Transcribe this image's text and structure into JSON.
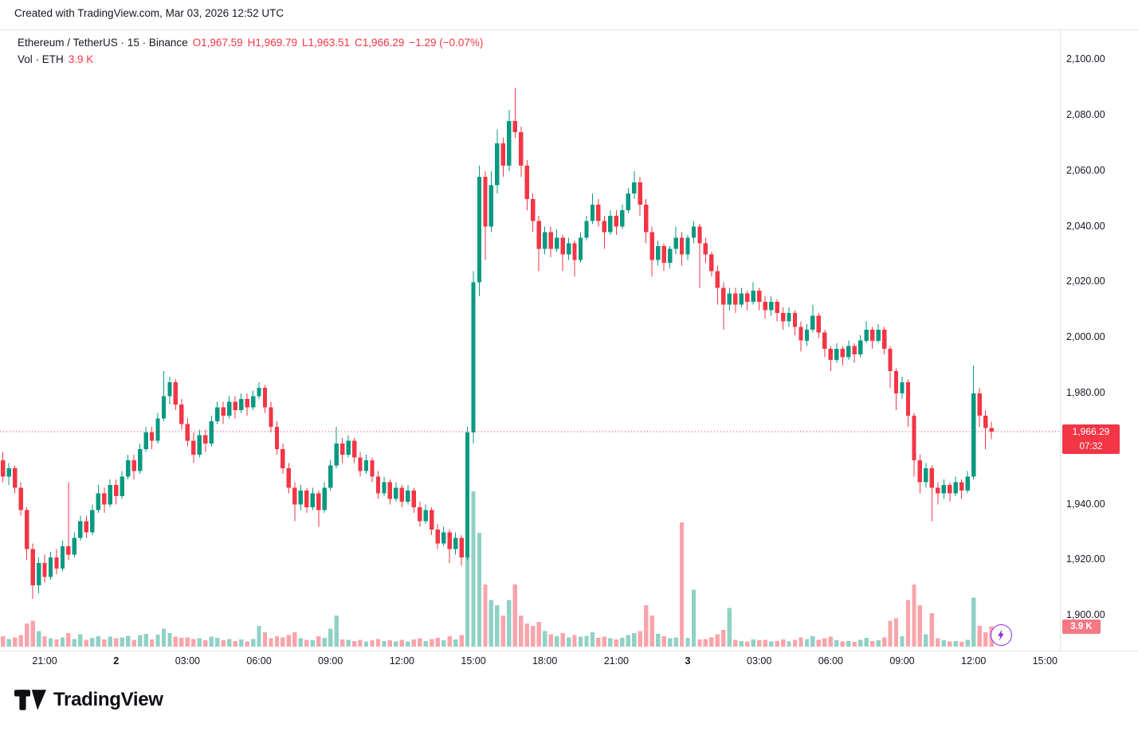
{
  "attribution": "Created with TradingView.com, Mar 03, 2026 12:52 UTC",
  "legend": {
    "title": "Ethereum / TetherUS · 15 · Binance",
    "open": "O1,967.59",
    "high": "H1,969.79",
    "low": "L1,963.51",
    "close": "C1,966.29",
    "change": "−1.29 (−0.07%)",
    "volume_label": "Vol · ETH",
    "volume_value": "3.9 K"
  },
  "badges": {
    "last_price": "1,966.29",
    "countdown": "07:32",
    "volume": "3.9 K"
  },
  "footer": {
    "brand": "TradingView"
  },
  "colors": {
    "up": "#089981",
    "down": "#F23645",
    "up_vol": "rgba(8,153,129,0.45)",
    "down_vol": "rgba(242,54,69,0.45)",
    "axis_text": "#131722",
    "last_price_badge_bg": "#F23645",
    "volume_badge_bg": "#f57883",
    "flash_purple": "#8a2be2"
  },
  "chart_data": {
    "type": "candlestick",
    "symbol": "Ethereum / TetherUS",
    "exchange": "Binance",
    "interval_minutes": 15,
    "start_time": "2026-03-01 19:15 UTC",
    "last_price": 1966.29,
    "last_volume_k": 3.9,
    "price_range": [
      1888,
      2111
    ],
    "total_slots": 178,
    "grid": "off",
    "legend_position": "top-left",
    "price_ticks": [
      {
        "label": "2,100.00",
        "value": 2100
      },
      {
        "label": "2,080.00",
        "value": 2080
      },
      {
        "label": "2,060.00",
        "value": 2060
      },
      {
        "label": "2,040.00",
        "value": 2040
      },
      {
        "label": "2,020.00",
        "value": 2020
      },
      {
        "label": "2,000.00",
        "value": 2000
      },
      {
        "label": "1,980.00",
        "value": 1980
      },
      {
        "label": "1,960.00",
        "value": 1960
      },
      {
        "label": "1,940.00",
        "value": 1940
      },
      {
        "label": "1,920.00",
        "value": 1920
      },
      {
        "label": "1,900.00",
        "value": 1900
      }
    ],
    "time_ticks": [
      {
        "label": "21:00",
        "slot": 7,
        "bold": false
      },
      {
        "label": "2",
        "slot": 19,
        "bold": true
      },
      {
        "label": "03:00",
        "slot": 31,
        "bold": false
      },
      {
        "label": "06:00",
        "slot": 43,
        "bold": false
      },
      {
        "label": "09:00",
        "slot": 55,
        "bold": false
      },
      {
        "label": "12:00",
        "slot": 67,
        "bold": false
      },
      {
        "label": "15:00",
        "slot": 79,
        "bold": false
      },
      {
        "label": "18:00",
        "slot": 91,
        "bold": false
      },
      {
        "label": "21:00",
        "slot": 103,
        "bold": false
      },
      {
        "label": "3",
        "slot": 115,
        "bold": true
      },
      {
        "label": "03:00",
        "slot": 127,
        "bold": false
      },
      {
        "label": "06:00",
        "slot": 139,
        "bold": false
      },
      {
        "label": "09:00",
        "slot": 151,
        "bold": false
      },
      {
        "label": "12:00",
        "slot": 163,
        "bold": false
      },
      {
        "label": "15:00",
        "slot": 175,
        "bold": false
      }
    ],
    "candles_ohlcv": [
      [
        1956,
        1959,
        1948,
        1950,
        2.0
      ],
      [
        1950,
        1955,
        1947,
        1953,
        1.5
      ],
      [
        1953,
        1954,
        1944,
        1946,
        1.8
      ],
      [
        1946,
        1948,
        1936,
        1938,
        2.2
      ],
      [
        1938,
        1939,
        1920,
        1924,
        4.5
      ],
      [
        1924,
        1926,
        1906,
        1911,
        5.0
      ],
      [
        1911,
        1921,
        1908,
        1919,
        3.0
      ],
      [
        1919,
        1922,
        1912,
        1914,
        2.0
      ],
      [
        1914,
        1923,
        1913,
        1921,
        1.6
      ],
      [
        1921,
        1924,
        1915,
        1917,
        1.4
      ],
      [
        1917,
        1927,
        1916,
        1925,
        1.8
      ],
      [
        1925,
        1948,
        1920,
        1922,
        2.6
      ],
      [
        1922,
        1930,
        1921,
        1928,
        1.5
      ],
      [
        1928,
        1936,
        1927,
        1934,
        2.4
      ],
      [
        1934,
        1936,
        1928,
        1930,
        1.3
      ],
      [
        1930,
        1940,
        1929,
        1938,
        1.7
      ],
      [
        1938,
        1947,
        1937,
        1944,
        2.0
      ],
      [
        1944,
        1946,
        1937,
        1940,
        1.4
      ],
      [
        1940,
        1949,
        1939,
        1947,
        1.9
      ],
      [
        1947,
        1949,
        1940,
        1943,
        1.6
      ],
      [
        1943,
        1952,
        1942,
        1950,
        1.8
      ],
      [
        1950,
        1958,
        1949,
        1956,
        2.1
      ],
      [
        1956,
        1958,
        1949,
        1952,
        1.3
      ],
      [
        1952,
        1962,
        1951,
        1960,
        2.2
      ],
      [
        1960,
        1968,
        1959,
        1966,
        2.5
      ],
      [
        1966,
        1968,
        1960,
        1963,
        1.4
      ],
      [
        1963,
        1973,
        1962,
        1971,
        2.3
      ],
      [
        1971,
        1988,
        1970,
        1979,
        3.5
      ],
      [
        1979,
        1986,
        1976,
        1984,
        2.6
      ],
      [
        1984,
        1985,
        1974,
        1976,
        1.9
      ],
      [
        1976,
        1978,
        1967,
        1969,
        1.7
      ],
      [
        1969,
        1971,
        1961,
        1963,
        1.8
      ],
      [
        1963,
        1966,
        1955,
        1958,
        1.5
      ],
      [
        1958,
        1967,
        1957,
        1965,
        1.6
      ],
      [
        1965,
        1967,
        1959,
        1962,
        1.2
      ],
      [
        1962,
        1972,
        1961,
        1970,
        1.9
      ],
      [
        1970,
        1977,
        1969,
        1975,
        1.7
      ],
      [
        1975,
        1977,
        1969,
        1972,
        1.2
      ],
      [
        1972,
        1979,
        1971,
        1977,
        1.5
      ],
      [
        1977,
        1979,
        1971,
        1974,
        1.1
      ],
      [
        1974,
        1980,
        1973,
        1978,
        1.4
      ],
      [
        1978,
        1980,
        1972,
        1975,
        1.0
      ],
      [
        1975,
        1981,
        1974,
        1979,
        1.5
      ],
      [
        1979,
        1984,
        1978,
        1982,
        4.0
      ],
      [
        1982,
        1983,
        1973,
        1975,
        2.8
      ],
      [
        1975,
        1977,
        1966,
        1968,
        1.6
      ],
      [
        1968,
        1970,
        1958,
        1960,
        2.0
      ],
      [
        1960,
        1962,
        1951,
        1953,
        1.8
      ],
      [
        1953,
        1955,
        1944,
        1946,
        2.2
      ],
      [
        1946,
        1948,
        1934,
        1940,
        2.8
      ],
      [
        1940,
        1947,
        1938,
        1945,
        1.6
      ],
      [
        1945,
        1946,
        1937,
        1939,
        1.3
      ],
      [
        1939,
        1946,
        1938,
        1944,
        1.2
      ],
      [
        1944,
        1945,
        1932,
        1938,
        2.0
      ],
      [
        1938,
        1948,
        1937,
        1946,
        1.7
      ],
      [
        1946,
        1956,
        1945,
        1954,
        3.5
      ],
      [
        1954,
        1968,
        1953,
        1962,
        6.0
      ],
      [
        1962,
        1964,
        1955,
        1958,
        1.4
      ],
      [
        1958,
        1965,
        1957,
        1963,
        1.3
      ],
      [
        1963,
        1964,
        1955,
        1957,
        1.1
      ],
      [
        1957,
        1959,
        1950,
        1952,
        1.3
      ],
      [
        1952,
        1958,
        1951,
        1956,
        1.0
      ],
      [
        1956,
        1957,
        1948,
        1950,
        1.2
      ],
      [
        1950,
        1952,
        1942,
        1944,
        1.5
      ],
      [
        1944,
        1950,
        1943,
        1948,
        1.1
      ],
      [
        1948,
        1949,
        1940,
        1942,
        1.2
      ],
      [
        1942,
        1948,
        1941,
        1946,
        1.0
      ],
      [
        1946,
        1947,
        1939,
        1941,
        1.3
      ],
      [
        1941,
        1947,
        1940,
        1945,
        1.0
      ],
      [
        1945,
        1946,
        1937,
        1939,
        1.4
      ],
      [
        1939,
        1941,
        1932,
        1934,
        1.6
      ],
      [
        1934,
        1940,
        1933,
        1938,
        1.1
      ],
      [
        1938,
        1939,
        1929,
        1931,
        1.5
      ],
      [
        1931,
        1933,
        1924,
        1926,
        1.7
      ],
      [
        1926,
        1932,
        1925,
        1930,
        1.2
      ],
      [
        1930,
        1931,
        1919,
        1924,
        2.0
      ],
      [
        1924,
        1930,
        1922,
        1928,
        1.4
      ],
      [
        1928,
        1929,
        1918,
        1921,
        2.2
      ],
      [
        1921,
        1968,
        1920,
        1966,
        18.0
      ],
      [
        1966,
        2024,
        1962,
        2020,
        30.0
      ],
      [
        2020,
        2062,
        2015,
        2058,
        22.0
      ],
      [
        2058,
        2060,
        2028,
        2040,
        12.0
      ],
      [
        2040,
        2060,
        2038,
        2055,
        9.0
      ],
      [
        2055,
        2075,
        2052,
        2070,
        8.0
      ],
      [
        2070,
        2072,
        2058,
        2062,
        6.0
      ],
      [
        2062,
        2082,
        2060,
        2078,
        9.0
      ],
      [
        2078,
        2090,
        2072,
        2074,
        12.0
      ],
      [
        2074,
        2076,
        2058,
        2062,
        6.0
      ],
      [
        2062,
        2064,
        2046,
        2050,
        4.5
      ],
      [
        2050,
        2052,
        2038,
        2042,
        4.0
      ],
      [
        2042,
        2044,
        2024,
        2032,
        4.8
      ],
      [
        2032,
        2040,
        2030,
        2038,
        3.0
      ],
      [
        2038,
        2040,
        2029,
        2032,
        2.4
      ],
      [
        2032,
        2039,
        2031,
        2036,
        2.0
      ],
      [
        2036,
        2037,
        2024,
        2030,
        2.6
      ],
      [
        2030,
        2036,
        2028,
        2034,
        1.8
      ],
      [
        2034,
        2035,
        2022,
        2028,
        2.2
      ],
      [
        2028,
        2038,
        2027,
        2036,
        1.9
      ],
      [
        2036,
        2044,
        2035,
        2042,
        2.1
      ],
      [
        2042,
        2052,
        2041,
        2048,
        2.8
      ],
      [
        2048,
        2050,
        2040,
        2042,
        1.7
      ],
      [
        2042,
        2044,
        2032,
        2038,
        1.9
      ],
      [
        2038,
        2046,
        2037,
        2044,
        1.6
      ],
      [
        2044,
        2046,
        2037,
        2040,
        1.4
      ],
      [
        2040,
        2048,
        2039,
        2046,
        1.7
      ],
      [
        2046,
        2054,
        2045,
        2052,
        2.2
      ],
      [
        2052,
        2060,
        2050,
        2056,
        2.6
      ],
      [
        2056,
        2058,
        2044,
        2048,
        3.0
      ],
      [
        2048,
        2050,
        2034,
        2038,
        8.0
      ],
      [
        2038,
        2040,
        2022,
        2028,
        6.0
      ],
      [
        2028,
        2035,
        2026,
        2033,
        2.5
      ],
      [
        2033,
        2034,
        2024,
        2027,
        2.0
      ],
      [
        2027,
        2033,
        2025,
        2032,
        1.6
      ],
      [
        2032,
        2040,
        2030,
        2036,
        1.8
      ],
      [
        2036,
        2038,
        2026,
        2030,
        24.0
      ],
      [
        2030,
        2037,
        2028,
        2036,
        1.7
      ],
      [
        2036,
        2042,
        2034,
        2040,
        11.0
      ],
      [
        2040,
        2041,
        2018,
        2034,
        1.4
      ],
      [
        2034,
        2036,
        2027,
        2030,
        1.5
      ],
      [
        2030,
        2031,
        2022,
        2024,
        1.8
      ],
      [
        2024,
        2026,
        2012,
        2018,
        2.4
      ],
      [
        2018,
        2020,
        2003,
        2012,
        3.2
      ],
      [
        2012,
        2018,
        2010,
        2016,
        7.5
      ],
      [
        2016,
        2018,
        2009,
        2012,
        1.3
      ],
      [
        2012,
        2018,
        2011,
        2016,
        1.1
      ],
      [
        2016,
        2017,
        2010,
        2013,
        1.0
      ],
      [
        2013,
        2020,
        2012,
        2017,
        1.4
      ],
      [
        2017,
        2018,
        2010,
        2013,
        1.2
      ],
      [
        2013,
        2015,
        2007,
        2010,
        1.3
      ],
      [
        2010,
        2015,
        2008,
        2013,
        1.0
      ],
      [
        2013,
        2014,
        2006,
        2009,
        1.1
      ],
      [
        2009,
        2011,
        2003,
        2006,
        1.4
      ],
      [
        2006,
        2011,
        2004,
        2009,
        1.0
      ],
      [
        2009,
        2010,
        2001,
        2004,
        1.3
      ],
      [
        2004,
        2006,
        1995,
        1999,
        1.8
      ],
      [
        1999,
        2005,
        1997,
        2003,
        1.5
      ],
      [
        2003,
        2012,
        2002,
        2008,
        2.0
      ],
      [
        2008,
        2009,
        2000,
        2002,
        1.3
      ],
      [
        2002,
        2003,
        1993,
        1996,
        1.6
      ],
      [
        1996,
        1997,
        1988,
        1992,
        1.9
      ],
      [
        1992,
        1998,
        1991,
        1996,
        1.2
      ],
      [
        1996,
        1997,
        1990,
        1993,
        1.0
      ],
      [
        1993,
        1999,
        1992,
        1997,
        1.1
      ],
      [
        1997,
        1998,
        1991,
        1994,
        0.9
      ],
      [
        1994,
        2001,
        1993,
        1999,
        1.3
      ],
      [
        1999,
        2006,
        1998,
        2003,
        1.7
      ],
      [
        2003,
        2004,
        1996,
        1999,
        1.1
      ],
      [
        1999,
        2005,
        1998,
        2003,
        1.2
      ],
      [
        2003,
        2004,
        1994,
        1996,
        1.8
      ],
      [
        1996,
        1997,
        1982,
        1988,
        5.0
      ],
      [
        1988,
        1989,
        1974,
        1980,
        5.5
      ],
      [
        1980,
        1986,
        1978,
        1984,
        2.0
      ],
      [
        1984,
        1985,
        1968,
        1972,
        9.0
      ],
      [
        1972,
        1973,
        1950,
        1956,
        12.0
      ],
      [
        1956,
        1958,
        1944,
        1948,
        8.0
      ],
      [
        1948,
        1955,
        1946,
        1953,
        2.4
      ],
      [
        1953,
        1954,
        1934,
        1946,
        6.5
      ],
      [
        1946,
        1948,
        1940,
        1944,
        1.6
      ],
      [
        1944,
        1949,
        1942,
        1947,
        1.2
      ],
      [
        1947,
        1948,
        1941,
        1944,
        1.0
      ],
      [
        1944,
        1950,
        1943,
        1948,
        1.1
      ],
      [
        1948,
        1949,
        1942,
        1945,
        0.9
      ],
      [
        1945,
        1952,
        1944,
        1950,
        1.3
      ],
      [
        1950,
        1990,
        1949,
        1980,
        9.5
      ],
      [
        1980,
        1982,
        1968,
        1972,
        4.0
      ],
      [
        1972,
        1974,
        1960,
        1967.6,
        2.8
      ],
      [
        1967.59,
        1969.79,
        1963.51,
        1966.29,
        3.9
      ]
    ]
  }
}
